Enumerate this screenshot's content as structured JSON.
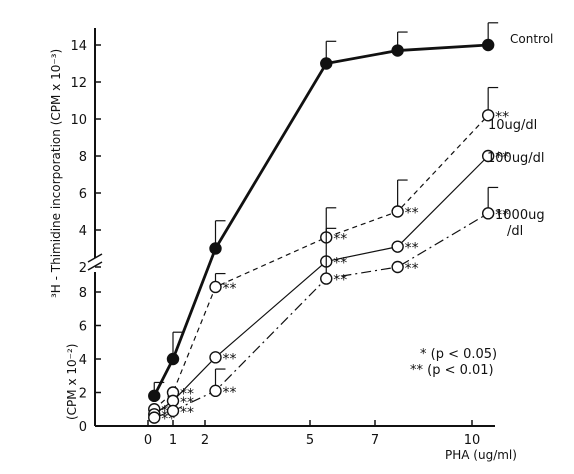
{
  "chart_data": {
    "type": "line",
    "xlabel": "PHA (ug/ml)",
    "x_ticks": [
      "0",
      "1",
      "2",
      "5",
      "7",
      "10"
    ],
    "x": [
      0.25,
      1,
      2.3,
      5.5,
      7.7,
      10.5
    ],
    "ylabel_upper": "³H - Thimidine incorporation (CPM x 10⁻³)",
    "ylabel_lower": "(CPM x 10⁻²)",
    "upper_y_ticks": [
      "2",
      "4",
      "6",
      "8",
      "10",
      "12",
      "14"
    ],
    "lower_y_ticks": [
      "0",
      "2",
      "4",
      "6",
      "8"
    ],
    "series": [
      {
        "name": "Control",
        "style": "solid-bold",
        "marker": "filled",
        "points": [
          {
            "x": 0.25,
            "y": 1.8,
            "panel": "lower",
            "err": 0.8,
            "sig": ""
          },
          {
            "x": 1,
            "y": 4.0,
            "panel": "lower",
            "err": 1.6,
            "sig": ""
          },
          {
            "x": 2.3,
            "y": 3.0,
            "panel": "upper",
            "err": 1.5,
            "sig": ""
          },
          {
            "x": 5.5,
            "y": 13.0,
            "panel": "upper",
            "err": 1.2,
            "sig": ""
          },
          {
            "x": 7.7,
            "y": 13.7,
            "panel": "upper",
            "err": 1.0,
            "sig": ""
          },
          {
            "x": 10.5,
            "y": 14.0,
            "panel": "upper",
            "err": 1.2,
            "sig": ""
          }
        ]
      },
      {
        "name": "10ug/dl",
        "style": "dashed",
        "marker": "open",
        "points": [
          {
            "x": 0.25,
            "y": 1.0,
            "panel": "lower",
            "err": 0,
            "sig": "*"
          },
          {
            "x": 1,
            "y": 2.0,
            "panel": "lower",
            "err": 0,
            "sig": "**"
          },
          {
            "x": 2.3,
            "y": 8.3,
            "panel": "lower",
            "err": 0.8,
            "sig": "**"
          },
          {
            "x": 5.5,
            "y": 3.6,
            "panel": "upper",
            "err": 1.6,
            "sig": "**"
          },
          {
            "x": 7.7,
            "y": 5.0,
            "panel": "upper",
            "err": 1.7,
            "sig": "**"
          },
          {
            "x": 10.5,
            "y": 10.2,
            "panel": "upper",
            "err": 1.5,
            "sig": "**"
          }
        ]
      },
      {
        "name": "100ug/dl",
        "style": "solid-thin",
        "marker": "open",
        "points": [
          {
            "x": 0.25,
            "y": 0.7,
            "panel": "lower",
            "err": 0,
            "sig": "**"
          },
          {
            "x": 1,
            "y": 1.5,
            "panel": "lower",
            "err": 0,
            "sig": "**"
          },
          {
            "x": 2.3,
            "y": 4.1,
            "panel": "lower",
            "err": 0,
            "sig": "**"
          },
          {
            "x": 5.5,
            "y": 2.3,
            "panel": "upper",
            "err": 0,
            "sig": "**"
          },
          {
            "x": 7.7,
            "y": 3.1,
            "panel": "upper",
            "err": 0,
            "sig": "**"
          },
          {
            "x": 10.5,
            "y": 8.0,
            "panel": "upper",
            "err": 0,
            "sig": "**"
          }
        ]
      },
      {
        "name": "1000ug /dl",
        "style": "dashdot",
        "marker": "open",
        "points": [
          {
            "x": 0.25,
            "y": 0.5,
            "panel": "lower",
            "err": 0,
            "sig": "**"
          },
          {
            "x": 1,
            "y": 0.9,
            "panel": "lower",
            "err": 0,
            "sig": "**"
          },
          {
            "x": 2.3,
            "y": 2.1,
            "panel": "lower",
            "err": 1.3,
            "sig": "**"
          },
          {
            "x": 5.5,
            "y": 8.8,
            "panel": "lower",
            "err": 3.0,
            "sig": "**"
          },
          {
            "x": 7.7,
            "y": 2.0,
            "panel": "upper",
            "err": 0,
            "sig": "**"
          },
          {
            "x": 10.5,
            "y": 4.9,
            "panel": "upper",
            "err": 1.4,
            "sig": "**"
          }
        ]
      }
    ],
    "series_labels": [
      "Control",
      "10ug/dl",
      "100ug/dl",
      "1000ug",
      "/dl"
    ],
    "significance_legend": [
      "* (p < 0.05)",
      "** (p < 0.01)"
    ]
  }
}
